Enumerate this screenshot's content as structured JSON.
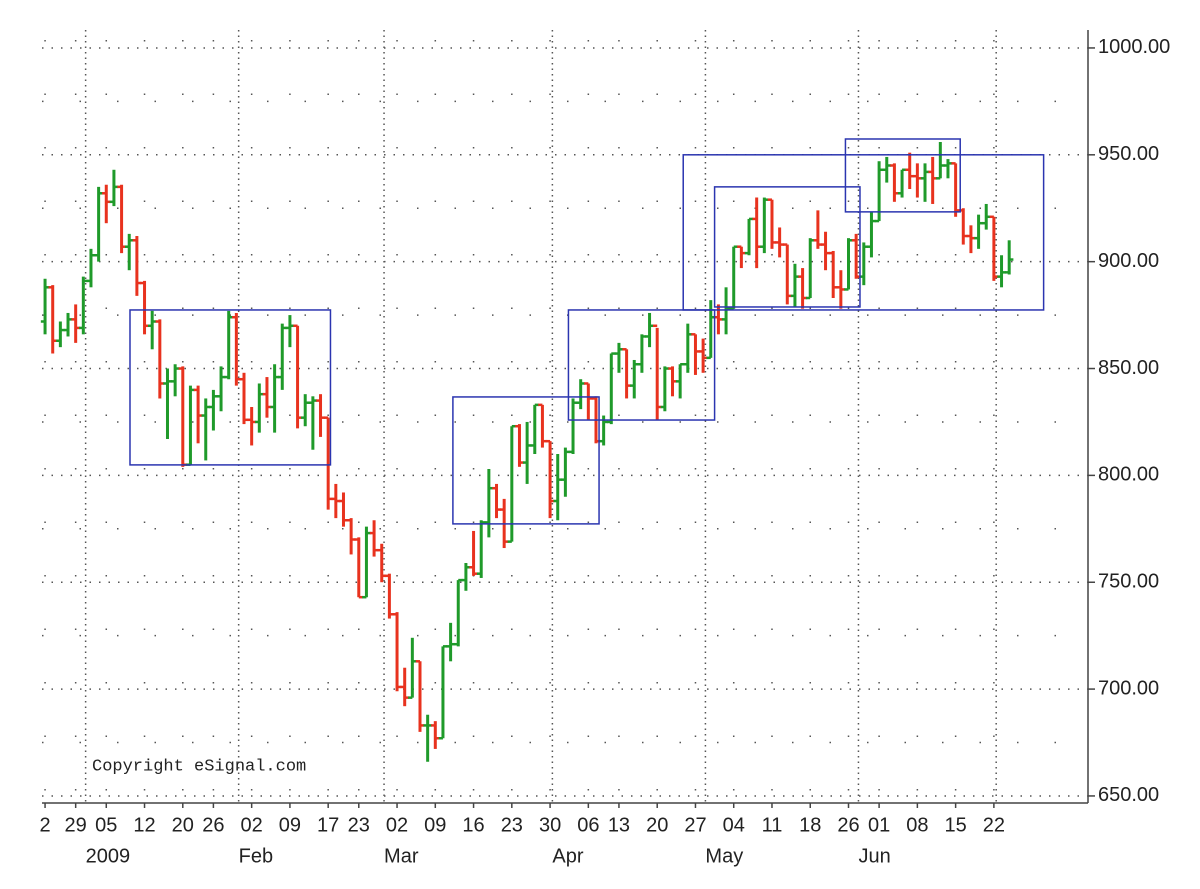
{
  "chart_data": {
    "type": "ohlc",
    "annotation": "Copyright eSignal.com",
    "up_color": "#1f9a2a",
    "down_color": "#e8321e",
    "box_color": "#2b35b0",
    "categories": [
      "2",
      null,
      null,
      null,
      "29",
      null,
      null,
      null,
      "05",
      null,
      null,
      null,
      null,
      "12",
      null,
      null,
      null,
      null,
      "20",
      null,
      null,
      null,
      "26",
      null,
      null,
      null,
      null,
      "02",
      null,
      null,
      null,
      null,
      "09",
      null,
      null,
      null,
      null,
      "17",
      null,
      null,
      null,
      "23",
      null,
      null,
      null,
      null,
      "02",
      null,
      null,
      null,
      null,
      "09",
      null,
      null,
      null,
      null,
      "16",
      null,
      null,
      null,
      null,
      "23",
      null,
      null,
      null,
      null,
      "30",
      null,
      null,
      null,
      null,
      "06",
      null,
      null,
      null,
      "13",
      null,
      null,
      null,
      null,
      "20",
      null,
      null,
      null,
      null,
      "27",
      null,
      null,
      null,
      null,
      "04",
      null,
      null,
      null,
      null,
      "11",
      null,
      null,
      null,
      null,
      "18",
      null,
      null,
      null,
      null,
      "26",
      null,
      null,
      null,
      "01",
      null,
      null,
      null,
      null,
      "08",
      null,
      null,
      null,
      null,
      "15",
      null,
      null,
      null,
      null,
      "22",
      null,
      null
    ],
    "months": [
      null,
      null,
      null,
      null,
      null,
      null,
      null,
      "2009",
      null,
      null,
      null,
      null,
      null,
      null,
      null,
      null,
      null,
      null,
      null,
      null,
      null,
      null,
      null,
      null,
      null,
      null,
      null,
      "Feb",
      null,
      null,
      null,
      null,
      null,
      null,
      null,
      null,
      null,
      null,
      null,
      null,
      null,
      null,
      null,
      null,
      null,
      null,
      "Mar",
      null,
      null,
      null,
      null,
      null,
      null,
      null,
      null,
      null,
      null,
      null,
      null,
      null,
      null,
      null,
      null,
      null,
      null,
      null,
      null,
      null,
      "Apr",
      null,
      null,
      null,
      null,
      null,
      null,
      null,
      null,
      null,
      null,
      null,
      null,
      null,
      null,
      null,
      null,
      null,
      null,
      null,
      "May",
      null,
      null,
      null,
      null,
      null,
      null,
      null,
      null,
      null,
      null,
      null,
      null,
      null,
      null,
      null,
      null,
      null,
      null,
      null,
      "Jun",
      null,
      null,
      null,
      null,
      null,
      null,
      null,
      null,
      null,
      null,
      null,
      null,
      null,
      null,
      null,
      null,
      null
    ],
    "open": [
      872,
      888,
      863,
      868,
      873,
      869,
      891,
      903,
      932,
      928,
      935,
      907,
      910,
      890,
      870,
      872,
      843,
      844,
      850,
      805,
      840,
      828,
      832,
      837,
      846,
      874,
      845,
      826,
      825,
      838,
      832,
      846,
      869,
      870,
      827,
      834,
      835,
      827,
      789,
      788,
      779,
      770,
      743,
      773,
      765,
      753,
      735,
      701,
      696,
      713,
      683,
      683,
      677,
      720,
      721,
      751,
      757,
      754,
      778,
      794,
      784,
      769,
      823,
      806,
      814,
      833,
      816,
      788,
      798,
      811,
      834,
      843,
      836,
      816,
      825,
      857,
      859,
      842,
      852,
      865,
      870,
      832,
      850,
      844,
      852,
      866,
      858,
      855,
      874,
      873,
      878,
      907,
      904,
      920,
      907,
      929,
      909,
      908,
      884,
      893,
      883,
      910,
      908,
      904,
      888,
      887,
      910,
      893,
      907,
      919,
      943,
      945,
      932,
      943,
      940,
      939,
      942,
      939,
      945,
      946,
      924,
      912,
      911,
      918,
      921,
      893,
      895
    ],
    "high": [
      892,
      889,
      872,
      876,
      880,
      893,
      906,
      935,
      936,
      943,
      936,
      913,
      912,
      891,
      877,
      873,
      850,
      852,
      851,
      842,
      842,
      836,
      840,
      851,
      877,
      876,
      848,
      832,
      843,
      846,
      852,
      871,
      875,
      870,
      838,
      837,
      838,
      827,
      796,
      792,
      780,
      771,
      776,
      779,
      768,
      754,
      736,
      710,
      724,
      713,
      688,
      685,
      720,
      731,
      751,
      759,
      774,
      779,
      803,
      796,
      789,
      823,
      824,
      825,
      833,
      833,
      816,
      810,
      813,
      836,
      845,
      843,
      837,
      828,
      857,
      862,
      859,
      854,
      866,
      876,
      869,
      851,
      851,
      852,
      871,
      866,
      864,
      882,
      880,
      888,
      907,
      907,
      920,
      930,
      930,
      929,
      916,
      908,
      899,
      897,
      911,
      924,
      914,
      905,
      896,
      911,
      913,
      909,
      923,
      947,
      949,
      946,
      943,
      951,
      946,
      946,
      949,
      956,
      948,
      946,
      925,
      917,
      922,
      927,
      921,
      903,
      910
    ],
    "low": [
      866,
      857,
      860,
      865,
      862,
      866,
      888,
      900,
      918,
      926,
      904,
      896,
      884,
      866,
      859,
      836,
      817,
      837,
      804,
      805,
      815,
      807,
      821,
      830,
      845,
      842,
      824,
      814,
      820,
      827,
      820,
      840,
      860,
      822,
      823,
      812,
      818,
      784,
      780,
      776,
      763,
      743,
      743,
      762,
      750,
      733,
      699,
      692,
      696,
      680,
      666,
      672,
      677,
      713,
      720,
      746,
      753,
      752,
      771,
      780,
      766,
      769,
      804,
      796,
      810,
      813,
      780,
      779,
      790,
      810,
      831,
      826,
      815,
      814,
      824,
      848,
      836,
      836,
      848,
      860,
      826,
      830,
      837,
      836,
      848,
      847,
      848,
      855,
      866,
      866,
      878,
      897,
      903,
      897,
      904,
      906,
      902,
      880,
      879,
      878,
      883,
      906,
      896,
      883,
      878,
      887,
      892,
      889,
      902,
      919,
      937,
      928,
      930,
      934,
      930,
      928,
      927,
      939,
      939,
      921,
      908,
      904,
      906,
      915,
      891,
      888,
      894
    ],
    "close": [
      888,
      863,
      868,
      873,
      869,
      891,
      903,
      932,
      928,
      935,
      907,
      910,
      890,
      870,
      872,
      843,
      844,
      850,
      805,
      840,
      828,
      832,
      837,
      846,
      874,
      845,
      826,
      825,
      838,
      832,
      846,
      869,
      870,
      827,
      834,
      835,
      827,
      789,
      788,
      779,
      770,
      743,
      773,
      765,
      753,
      735,
      701,
      696,
      713,
      683,
      683,
      677,
      720,
      721,
      751,
      757,
      754,
      778,
      794,
      784,
      769,
      823,
      806,
      814,
      833,
      816,
      788,
      798,
      811,
      834,
      843,
      836,
      816,
      825,
      857,
      859,
      842,
      852,
      865,
      870,
      832,
      850,
      844,
      852,
      866,
      858,
      855,
      874,
      873,
      878,
      907,
      904,
      920,
      907,
      929,
      909,
      908,
      884,
      893,
      883,
      910,
      908,
      904,
      888,
      887,
      910,
      893,
      907,
      919,
      943,
      945,
      932,
      943,
      940,
      939,
      942,
      939,
      945,
      946,
      924,
      912,
      911,
      918,
      921,
      893,
      895,
      901
    ],
    "boxes": [
      {
        "x": [
          11.1,
          37.3
        ],
        "y": [
          804.9,
          877.4
        ]
      },
      {
        "x": [
          53.3,
          72.4
        ],
        "y": [
          777.3,
          836.7
        ]
      },
      {
        "x": [
          68.4,
          87.5
        ],
        "y": [
          825.9,
          877.4
        ]
      },
      {
        "x": [
          83.4,
          130.5
        ],
        "y": [
          877.4,
          950
        ]
      },
      {
        "x": [
          87.5,
          106.5
        ],
        "y": [
          878.8,
          935
        ]
      },
      {
        "x": [
          104.6,
          119.6
        ],
        "y": [
          923.3,
          957.4
        ]
      }
    ],
    "xlim": [
      -0.4,
      136.3
    ],
    "ylim": [
      646.7,
      1008.4
    ],
    "yticks": [
      {
        "value": 650,
        "label": "650.00"
      },
      {
        "value": 700,
        "label": "700.00"
      },
      {
        "value": 750,
        "label": "750.00"
      },
      {
        "value": 800,
        "label": "800.00"
      },
      {
        "value": 850,
        "label": "850.00"
      },
      {
        "value": 900,
        "label": "900.00"
      },
      {
        "value": 950,
        "label": "950.00"
      },
      {
        "value": 1000,
        "label": "1000.00"
      }
    ],
    "yminor": [
      675,
      725,
      775,
      825,
      875,
      925,
      975
    ],
    "grid": true
  }
}
